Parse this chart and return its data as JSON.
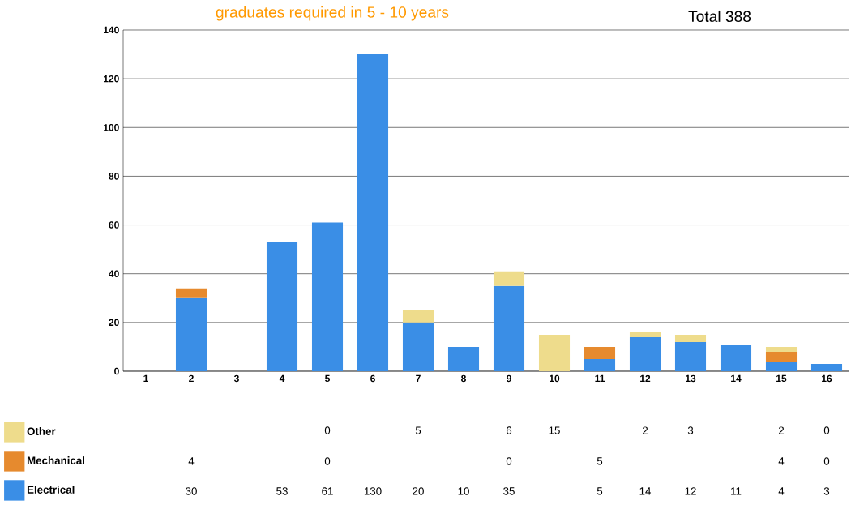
{
  "chart_data": {
    "type": "bar",
    "stacked": true,
    "title": "graduates required in 5 - 10 years",
    "annotations": [
      "Total 388"
    ],
    "categories": [
      "1",
      "2",
      "3",
      "4",
      "5",
      "6",
      "7",
      "8",
      "9",
      "10",
      "11",
      "12",
      "13",
      "14",
      "15",
      "16"
    ],
    "series": [
      {
        "name": "Electrical",
        "color": "#3a8ee6",
        "values": [
          null,
          30,
          null,
          53,
          61,
          130,
          20,
          10,
          35,
          null,
          5,
          14,
          12,
          11,
          4,
          3
        ]
      },
      {
        "name": "Mechanical",
        "color": "#e68a2e",
        "values": [
          null,
          4,
          null,
          null,
          0,
          null,
          null,
          null,
          0,
          null,
          5,
          null,
          null,
          null,
          4,
          0
        ]
      },
      {
        "name": "Other",
        "color": "#eedc8c",
        "values": [
          null,
          null,
          null,
          null,
          0,
          null,
          5,
          null,
          6,
          15,
          null,
          2,
          3,
          null,
          2,
          0
        ]
      }
    ],
    "ylim": [
      0,
      140
    ],
    "yticks": [
      0,
      20,
      40,
      60,
      80,
      100,
      120,
      140
    ],
    "grid": "y",
    "data_labels": true,
    "legend": "bottom left"
  }
}
